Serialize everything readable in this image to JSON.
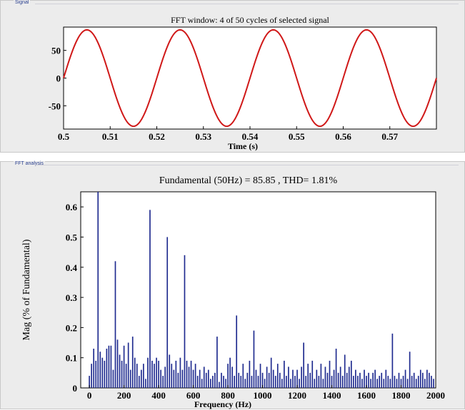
{
  "panels": {
    "signal_tag": "Signal",
    "fft_tag": "FFT analysis"
  },
  "colors": {
    "signal_line": "#d01818",
    "bars": "#1f2b8f",
    "panel_bg": "#ececec",
    "plot_bg": "#ffffff"
  },
  "chart_data": [
    {
      "type": "line",
      "title": "FFT window: 4 of 50 cycles of selected signal",
      "xlabel": "Time (s)",
      "ylabel": "",
      "xlim": [
        0.5,
        0.58
      ],
      "ylim": [
        -92,
        92
      ],
      "x_ticks": [
        0.5,
        0.51,
        0.52,
        0.53,
        0.54,
        0.55,
        0.56,
        0.57
      ],
      "x_tick_labels": [
        "0.5",
        "0.51",
        "0.52",
        "0.53",
        "0.54",
        "0.55",
        "0.56",
        "0.57"
      ],
      "y_ticks": [
        50,
        0,
        -50
      ],
      "y_tick_labels": [
        "50",
        "0",
        "-50"
      ],
      "series": [
        {
          "signal": "sinusoid",
          "amplitude": 87,
          "frequency_hz": 50,
          "x": [
            0.5,
            0.505,
            0.51,
            0.515,
            0.52,
            0.525,
            0.53,
            0.535,
            0.54,
            0.545,
            0.55,
            0.555,
            0.56,
            0.565,
            0.57,
            0.575,
            0.58
          ],
          "y": [
            0,
            87,
            0,
            -87,
            0,
            87,
            0,
            -87,
            0,
            87,
            0,
            -87,
            0,
            87,
            0,
            -87,
            0
          ]
        }
      ],
      "grid": false
    },
    {
      "type": "bar",
      "title": "Fundamental (50Hz) = 85.85 , THD= 1.81%",
      "xlabel": "Frequency (Hz)",
      "ylabel": "Mag (% of Fundamental)",
      "xlim": [
        -50,
        2000
      ],
      "ylim": [
        0,
        0.65
      ],
      "x_ticks": [
        0,
        200,
        400,
        600,
        800,
        1000,
        1200,
        1400,
        1600,
        1800,
        2000
      ],
      "x_tick_labels": [
        "0",
        "200",
        "400",
        "600",
        "800",
        "1000",
        "1200",
        "1400",
        "1600",
        "1800",
        "2000"
      ],
      "y_ticks": [
        0,
        0.1,
        0.2,
        0.3,
        0.4,
        0.5,
        0.6
      ],
      "y_tick_labels": [
        "0",
        "0.1",
        "0.2",
        "0.3",
        "0.4",
        "0.5",
        "0.6"
      ],
      "bar_spacing_hz": 12.5,
      "x": [
        0,
        12.5,
        25,
        37.5,
        50,
        62.5,
        75,
        87.5,
        100,
        112.5,
        125,
        137.5,
        150,
        162.5,
        175,
        187.5,
        200,
        212.5,
        225,
        237.5,
        250,
        262.5,
        275,
        287.5,
        300,
        312.5,
        325,
        337.5,
        350,
        362.5,
        375,
        387.5,
        400,
        412.5,
        425,
        437.5,
        450,
        462.5,
        475,
        487.5,
        500,
        512.5,
        525,
        537.5,
        550,
        562.5,
        575,
        587.5,
        600,
        612.5,
        625,
        637.5,
        650,
        662.5,
        675,
        687.5,
        700,
        712.5,
        725,
        737.5,
        750,
        762.5,
        775,
        787.5,
        800,
        812.5,
        825,
        837.5,
        850,
        862.5,
        875,
        887.5,
        900,
        912.5,
        925,
        937.5,
        950,
        962.5,
        975,
        987.5,
        1000,
        1012.5,
        1025,
        1037.5,
        1050,
        1062.5,
        1075,
        1087.5,
        1100,
        1112.5,
        1125,
        1137.5,
        1150,
        1162.5,
        1175,
        1187.5,
        1200,
        1212.5,
        1225,
        1237.5,
        1250,
        1262.5,
        1275,
        1287.5,
        1300,
        1312.5,
        1325,
        1337.5,
        1350,
        1362.5,
        1375,
        1387.5,
        1400,
        1412.5,
        1425,
        1437.5,
        1450,
        1462.5,
        1475,
        1487.5,
        1500,
        1512.5,
        1525,
        1537.5,
        1550,
        1562.5,
        1575,
        1587.5,
        1600,
        1612.5,
        1625,
        1637.5,
        1650,
        1662.5,
        1675,
        1687.5,
        1700,
        1712.5,
        1725,
        1737.5,
        1750,
        1762.5,
        1775,
        1787.5,
        1800,
        1812.5,
        1825,
        1837.5,
        1850,
        1862.5,
        1875,
        1887.5,
        1900,
        1912.5,
        1925,
        1937.5,
        1950,
        1962.5,
        1975,
        1987.5
      ],
      "values": [
        0.04,
        0.08,
        0.13,
        0.09,
        0.65,
        0.12,
        0.1,
        0.09,
        0.13,
        0.14,
        0.14,
        0.06,
        0.42,
        0.16,
        0.11,
        0.09,
        0.14,
        0.08,
        0.15,
        0.06,
        0.17,
        0.1,
        0.08,
        0.04,
        0.06,
        0.08,
        0.03,
        0.1,
        0.59,
        0.09,
        0.08,
        0.1,
        0.09,
        0.06,
        0.04,
        0.07,
        0.5,
        0.11,
        0.08,
        0.06,
        0.09,
        0.05,
        0.1,
        0.06,
        0.44,
        0.09,
        0.07,
        0.09,
        0.06,
        0.08,
        0.04,
        0.06,
        0.03,
        0.07,
        0.05,
        0.06,
        0.03,
        0.04,
        0.05,
        0.17,
        0.02,
        0.05,
        0.04,
        0.03,
        0.08,
        0.1,
        0.07,
        0.04,
        0.24,
        0.05,
        0.04,
        0.08,
        0.03,
        0.05,
        0.09,
        0.04,
        0.19,
        0.06,
        0.04,
        0.08,
        0.05,
        0.03,
        0.07,
        0.05,
        0.1,
        0.06,
        0.04,
        0.08,
        0.05,
        0.03,
        0.09,
        0.04,
        0.07,
        0.03,
        0.06,
        0.04,
        0.06,
        0.03,
        0.07,
        0.15,
        0.04,
        0.08,
        0.05,
        0.09,
        0.03,
        0.06,
        0.04,
        0.08,
        0.03,
        0.07,
        0.05,
        0.09,
        0.04,
        0.06,
        0.13,
        0.05,
        0.07,
        0.04,
        0.11,
        0.05,
        0.07,
        0.09,
        0.04,
        0.06,
        0.04,
        0.05,
        0.03,
        0.06,
        0.04,
        0.05,
        0.03,
        0.05,
        0.06,
        0.03,
        0.04,
        0.05,
        0.03,
        0.06,
        0.04,
        0.03,
        0.18,
        0.04,
        0.03,
        0.05,
        0.03,
        0.04,
        0.06,
        0.03,
        0.12,
        0.04,
        0.05,
        0.03,
        0.04,
        0.06,
        0.05,
        0.03,
        0.06,
        0.05,
        0.04,
        0.03
      ],
      "grid": false
    }
  ]
}
